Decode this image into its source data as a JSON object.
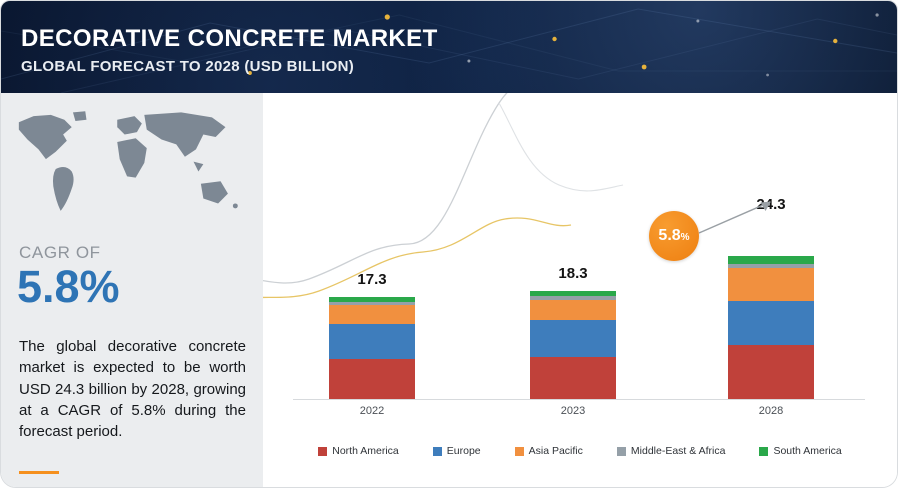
{
  "header": {
    "title": "DECORATIVE CONCRETE MARKET",
    "subtitle": "GLOBAL FORECAST TO 2028 (USD BILLION)"
  },
  "sidebar": {
    "cagr_label": "CAGR OF",
    "cagr_value": "5.8%",
    "description": "The global decorative concrete market is expected to be worth USD 24.3 billion by 2028, growing at a CAGR of 5.8% during the forecast period."
  },
  "growth_badge": {
    "value": "5.8",
    "suffix": "%"
  },
  "colors": {
    "header_bg": "#0c1a33",
    "accent_orange": "#f28a1e",
    "cagr_blue": "#2e74b5",
    "sidebar_bg": "#ebedef",
    "map_gray": "#7d8894"
  },
  "chart_data": {
    "type": "bar",
    "stacked": true,
    "title": "Decorative Concrete Market, Global Forecast (USD Billion)",
    "categories": [
      "2022",
      "2023",
      "2028"
    ],
    "totals": [
      17.3,
      18.3,
      24.3
    ],
    "series": [
      {
        "name": "North America",
        "color": "#c0413a",
        "values": [
          6.7,
          7.1,
          9.2
        ]
      },
      {
        "name": "Europe",
        "color": "#3e7dbc",
        "values": [
          6.0,
          6.3,
          7.4
        ]
      },
      {
        "name": "Asia Pacific",
        "color": "#f1903f",
        "values": [
          3.2,
          3.4,
          5.6
        ]
      },
      {
        "name": "Middle-East & Africa",
        "color": "#95a0a8",
        "values": [
          0.5,
          0.6,
          0.7
        ]
      },
      {
        "name": "South America",
        "color": "#2aa84a",
        "values": [
          0.9,
          0.9,
          1.4
        ]
      }
    ],
    "ylabel": "USD Billion",
    "xlabel": "",
    "legend_position": "bottom",
    "grid": false,
    "cagr_annotation": "5.8%"
  }
}
